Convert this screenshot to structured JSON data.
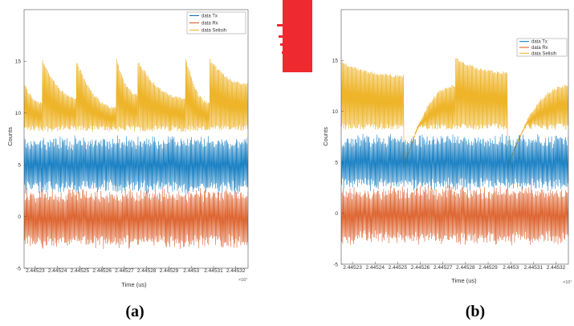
{
  "colors": {
    "tx": "#0072BD",
    "rx": "#D95319",
    "selisih": "#EDB120",
    "red_block": "#ee2a30"
  },
  "captions": {
    "a": "(a)",
    "b": "(b)"
  },
  "chart_data": [
    {
      "type": "line",
      "panel": "a",
      "xlabel": "Time (us)",
      "ylabel": "Counts",
      "x_exponent": "×10⁷",
      "xlim": [
        2.445225,
        2.4453255
      ],
      "ylim": [
        -5,
        20
      ],
      "grid": false,
      "legend_placement": "top-right",
      "xticks": [
        "2.44523",
        "2.44524",
        "2.44525",
        "2.44526",
        "2.44527",
        "2.44528",
        "2.44529",
        "2.4453",
        "2.44531",
        "2.44532"
      ],
      "yticks": [
        "-5",
        "0",
        "5",
        "10",
        "15"
      ],
      "series": [
        {
          "name": "data Tx",
          "color": "#0072BD",
          "center": 5.0,
          "amplitude": 2.6
        },
        {
          "name": "data Rx",
          "color": "#D95319",
          "center": -0.2,
          "amplitude": 2.7
        },
        {
          "name": "data Selisih",
          "color": "#EDB120",
          "low": 8.5,
          "segments": [
            {
              "x_start": 2.445225,
              "high_start": 12.8,
              "high_end": 11.0
            },
            {
              "x_start": 2.4452332,
              "high_start": 15.2,
              "high_end": 11.5
            },
            {
              "x_start": 2.4452485,
              "high_start": 15.0,
              "high_end": 10.5
            },
            {
              "x_start": 2.4452665,
              "high_start": 15.2,
              "high_end": 11.8
            },
            {
              "x_start": 2.445276,
              "high_start": 15.0,
              "high_end": 11.4
            },
            {
              "x_start": 2.4452975,
              "high_start": 15.4,
              "high_end": 11.0
            },
            {
              "x_start": 2.4453082,
              "high_start": 15.2,
              "high_end": 12.8
            }
          ]
        }
      ]
    },
    {
      "type": "line",
      "panel": "b",
      "xlabel": "Time (us)",
      "ylabel": "Counts",
      "x_exponent": "×10⁷",
      "xlim": [
        2.445225,
        2.4453255
      ],
      "ylim": [
        -5,
        20
      ],
      "grid": false,
      "legend_placement": "top-right",
      "xticks": [
        "2.44523",
        "2.44524",
        "2.44525",
        "2.44526",
        "2.44527",
        "2.44528",
        "2.44529",
        "2.4453",
        "2.44531",
        "2.44532"
      ],
      "yticks": [
        "-5",
        "0",
        "5",
        "10",
        "15"
      ],
      "series": [
        {
          "name": "data Tx",
          "color": "#0072BD",
          "center": 5.0,
          "amplitude": 2.6
        },
        {
          "name": "data Rx",
          "color": "#D95319",
          "center": -0.2,
          "amplitude": 2.7
        },
        {
          "name": "data Selisih",
          "color": "#EDB120",
          "low": 8.5,
          "segments": [
            {
              "x_start": 2.445225,
              "high_start": 14.8,
              "high_end": 13.5
            },
            {
              "x_start": 2.4452526,
              "high_start": 4.5,
              "high_end": 12.5
            },
            {
              "x_start": 2.4452755,
              "high_start": 15.2,
              "high_end": 13.8
            },
            {
              "x_start": 2.4452985,
              "high_start": 4.5,
              "high_end": 12.5
            }
          ]
        }
      ]
    }
  ]
}
